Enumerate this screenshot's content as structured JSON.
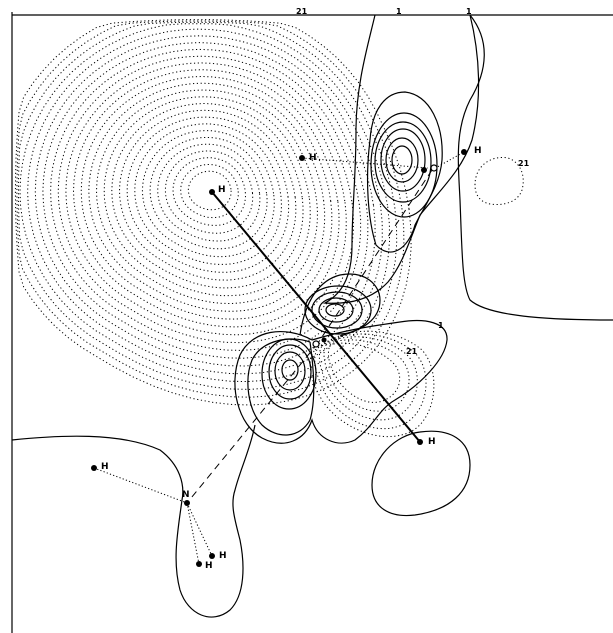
{
  "diagram": {
    "contour_labels": {
      "top_dotted": "21",
      "top_solid_a": "1",
      "top_solid_b": "1",
      "right_small": "21",
      "lower_solid": "1",
      "lower_dotted": "21"
    },
    "atoms": {
      "h_center": "H",
      "h_upper": "H",
      "h_right": "H",
      "h_lower": "H",
      "n_left": "N",
      "h_left": "H",
      "h_bottom": "H",
      "h_bottom2": "H"
    }
  }
}
